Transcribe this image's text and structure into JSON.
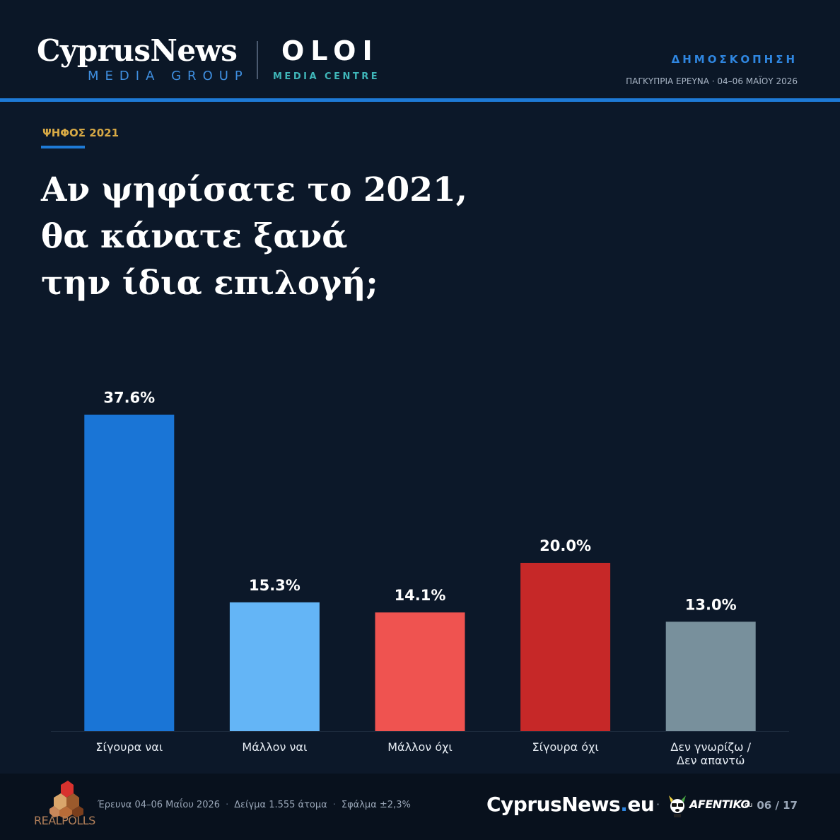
{
  "header": {
    "brand_main": "CyprusNews",
    "brand_sub": "MEDIA GROUP",
    "partner_main": "OLOI",
    "partner_sub": "MEDIA CENTRE",
    "kicker": "ΔΗΜΟΣΚΟΠΗΣΗ",
    "subtitle": "ΠΑΓΚΥΠΡΙΑ ΕΡΕΥΝΑ · 04–06 ΜΑΪΟΥ 2026"
  },
  "section_label": "ΨΗΦΟΣ 2021",
  "question_lines": [
    "Αν ψηφίσατε το 2021,",
    "θα κάνατε ξανά",
    "την ίδια επιλογή;"
  ],
  "chart_data": {
    "type": "bar",
    "categories": [
      "Σίγουρα ναι",
      "Μάλλον ναι",
      "Μάλλον όχι",
      "Σίγουρα όχι",
      "Δεν γνωρίζω / Δεν απαντώ"
    ],
    "category_lines": [
      [
        "Σίγουρα ναι"
      ],
      [
        "Μάλλον ναι"
      ],
      [
        "Μάλλον όχι"
      ],
      [
        "Σίγουρα όχι"
      ],
      [
        "Δεν γνωρίζω /",
        "Δεν απαντώ"
      ]
    ],
    "values": [
      37.6,
      15.3,
      14.1,
      20.0,
      13.0
    ],
    "value_labels": [
      "37.6%",
      "15.3%",
      "14.1%",
      "20.0%",
      "13.0%"
    ],
    "colors": [
      "#1a75d6",
      "#64b5f6",
      "#ef5350",
      "#c62828",
      "#78909c"
    ],
    "ylim": [
      0,
      40
    ],
    "grid": false,
    "title": "",
    "xlabel": "",
    "ylabel": ""
  },
  "footer": {
    "pollster_logo_text": "REALPOLLS",
    "meta": [
      "Έρευνα 04–06 Μαΐου 2026",
      "Δείγμα 1.555 άτομα",
      "Σφάλμα ±2,3%"
    ],
    "site_name": "CyprusNews",
    "site_dot": ".",
    "site_tld": "eu",
    "separator": "·",
    "afentiko_logo_text": "AFENTIKO",
    "afentiko_suffix": "eu",
    "page": "06 / 17"
  }
}
